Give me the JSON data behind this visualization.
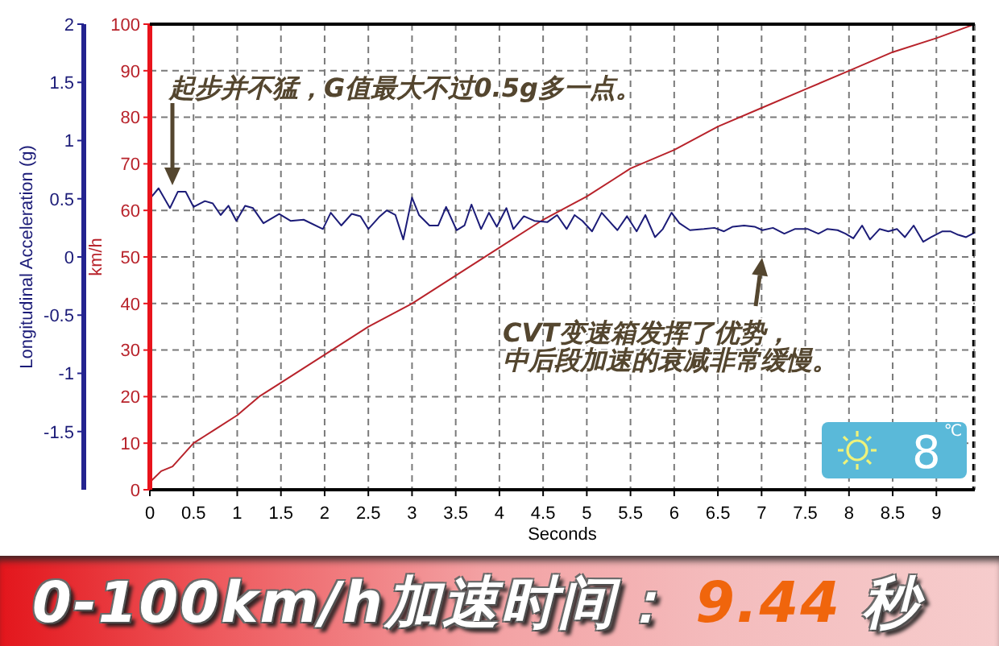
{
  "chart_data": {
    "type": "line",
    "title": "0-100km/h加速时间： 9.44 秒",
    "xlabel": "Seconds",
    "ylabel": "km/h",
    "y2label": "Longitudinal Acceleration (g)",
    "xlim": [
      0,
      9.44
    ],
    "xticks": [
      0,
      0.5,
      1,
      1.5,
      2,
      2.5,
      3,
      3.5,
      4,
      4.5,
      5,
      5.5,
      6,
      6.5,
      7,
      7.5,
      8,
      8.5,
      9
    ],
    "ylim": [
      0,
      100
    ],
    "yticks": [
      0,
      10,
      20,
      30,
      40,
      50,
      60,
      70,
      80,
      90,
      100
    ],
    "y2lim": [
      -2,
      2
    ],
    "y2ticks": [
      -1.5,
      -1,
      -0.5,
      0,
      0.5,
      1,
      1.5,
      2
    ],
    "grid": true,
    "series": [
      {
        "color": "#b8232b",
        "x": [
          0.02,
          0.13,
          0.26,
          0.5,
          0.75,
          1.0,
          1.25,
          1.5,
          2.0,
          2.5,
          3.0,
          3.5,
          4.0,
          4.5,
          5.0,
          5.5,
          6.0,
          6.5,
          7.0,
          7.5,
          8.0,
          8.5,
          9.0,
          9.44
        ],
        "values": [
          2,
          4,
          5,
          10,
          13,
          16,
          20,
          23,
          29,
          35,
          40,
          46,
          52,
          58,
          63,
          69,
          73,
          78,
          82,
          86,
          90,
          94,
          97,
          100
        ]
      },
      {
        "color": "#1c1c78",
        "axis": "y2",
        "x": [
          0,
          0.1,
          0.23,
          0.32,
          0.41,
          0.5,
          0.63,
          0.72,
          0.81,
          0.9,
          0.99,
          1.09,
          1.18,
          1.3,
          1.48,
          1.61,
          1.76,
          1.98,
          2.07,
          2.19,
          2.31,
          2.41,
          2.5,
          2.62,
          2.71,
          2.81,
          2.9,
          3.0,
          3.08,
          3.2,
          3.3,
          3.39,
          3.51,
          3.6,
          3.68,
          3.79,
          3.88,
          3.97,
          4.08,
          4.16,
          4.28,
          4.4,
          4.55,
          4.66,
          4.77,
          4.86,
          4.95,
          5.06,
          5.17,
          5.35,
          5.46,
          5.57,
          5.67,
          5.78,
          5.87,
          5.97,
          6.06,
          6.18,
          6.34,
          6.46,
          6.57,
          6.67,
          6.8,
          6.92,
          7.01,
          7.13,
          7.26,
          7.38,
          7.53,
          7.65,
          7.75,
          7.87,
          7.96,
          8.05,
          8.15,
          8.24,
          8.35,
          8.45,
          8.55,
          8.64,
          8.74,
          8.85,
          8.94,
          9.07,
          9.16,
          9.25,
          9.34,
          9.44
        ],
        "values": [
          0.5,
          0.59,
          0.42,
          0.56,
          0.56,
          0.43,
          0.48,
          0.46,
          0.36,
          0.44,
          0.31,
          0.44,
          0.42,
          0.29,
          0.37,
          0.31,
          0.32,
          0.24,
          0.38,
          0.27,
          0.37,
          0.35,
          0.24,
          0.34,
          0.4,
          0.36,
          0.15,
          0.51,
          0.36,
          0.27,
          0.27,
          0.43,
          0.23,
          0.27,
          0.45,
          0.24,
          0.38,
          0.26,
          0.42,
          0.24,
          0.35,
          0.31,
          0.3,
          0.36,
          0.24,
          0.36,
          0.31,
          0.22,
          0.38,
          0.23,
          0.35,
          0.22,
          0.36,
          0.17,
          0.24,
          0.38,
          0.29,
          0.23,
          0.24,
          0.25,
          0.22,
          0.26,
          0.27,
          0.26,
          0.23,
          0.25,
          0.2,
          0.24,
          0.24,
          0.2,
          0.24,
          0.23,
          0.2,
          0.16,
          0.27,
          0.15,
          0.24,
          0.22,
          0.24,
          0.17,
          0.27,
          0.13,
          0.17,
          0.22,
          0.22,
          0.19,
          0.17,
          0.21
        ]
      }
    ],
    "annotations": [
      "起步并不猛，G值最大不过0.5g多一点。",
      "CVT变速箱发挥了优势，中后段加速的衰减非常缓慢。",
      "8$^{℃}$"
    ]
  }
}
